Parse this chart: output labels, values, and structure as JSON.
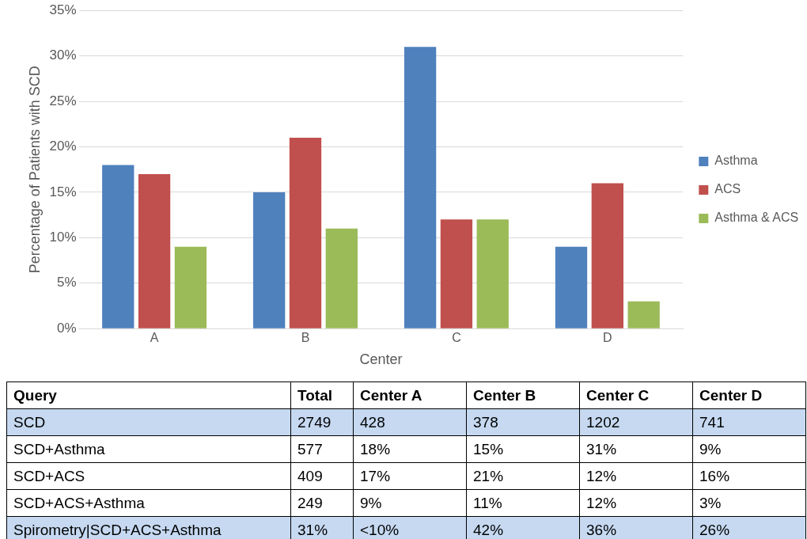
{
  "chart_data": [
    {
      "type": "bar",
      "xlabel": "Center",
      "ylabel": "Percentage of Patients with SCD",
      "categories": [
        "A",
        "B",
        "C",
        "D"
      ],
      "series": [
        {
          "name": "Asthma",
          "color": "#4f81bd",
          "values": [
            18,
            15,
            31,
            9
          ]
        },
        {
          "name": "ACS",
          "color": "#c0504d",
          "values": [
            17,
            21,
            12,
            16
          ]
        },
        {
          "name": "Asthma & ACS",
          "color": "#9bbb59",
          "values": [
            9,
            11,
            12,
            3
          ]
        }
      ],
      "ylim": [
        0,
        35
      ],
      "yticks": [
        {
          "value": 0,
          "label": "0%"
        },
        {
          "value": 5,
          "label": "5%"
        },
        {
          "value": 10,
          "label": "10%"
        },
        {
          "value": 15,
          "label": "15%"
        },
        {
          "value": 20,
          "label": "20%"
        },
        {
          "value": 25,
          "label": "25%"
        },
        {
          "value": 30,
          "label": "30%"
        },
        {
          "value": 35,
          "label": "35%"
        }
      ],
      "grid": "y",
      "legend": "right"
    },
    {
      "type": "other",
      "ylabel": "Query",
      "categories": [
        "Total",
        "Center A",
        "Center B",
        "Center C",
        "Center D"
      ],
      "y_categories": [
        "SCD",
        "SCD+Asthma",
        "SCD+ACS",
        "SCD+ACS+Asthma",
        "Spirometry|SCD+ACS+Asthma"
      ],
      "colors": [
        "#c6d9f1",
        "#ffffff",
        "#ffffff",
        "#ffffff",
        "#c6d9f1"
      ],
      "cell_labels": [
        [
          "2749",
          "428",
          "378",
          "1202",
          "741"
        ],
        [
          "577",
          "18%",
          "15%",
          "31%",
          "9%"
        ],
        [
          "409",
          "17%",
          "21%",
          "12%",
          "16%"
        ],
        [
          "249",
          "9%",
          "11%",
          "12%",
          "3%"
        ],
        [
          "31%",
          "<10%",
          "42%",
          "36%",
          "26%"
        ]
      ]
    }
  ]
}
